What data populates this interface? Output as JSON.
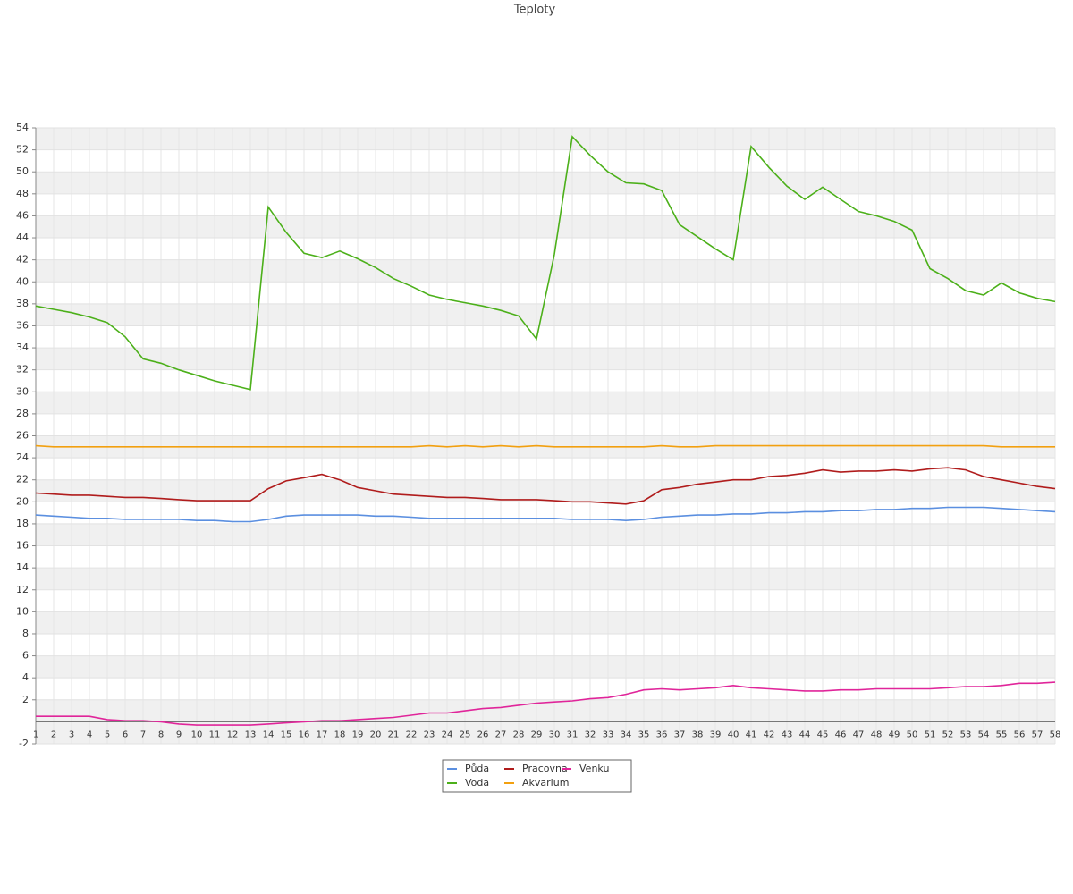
{
  "chart_data": {
    "type": "line",
    "title": "Teploty",
    "categories": [
      "1",
      "2",
      "3",
      "4",
      "5",
      "6",
      "7",
      "8",
      "9",
      "10",
      "11",
      "12",
      "13",
      "14",
      "15",
      "16",
      "17",
      "18",
      "19",
      "20",
      "21",
      "22",
      "23",
      "24",
      "25",
      "26",
      "27",
      "28",
      "29",
      "30",
      "31",
      "32",
      "33",
      "34",
      "35",
      "36",
      "37",
      "38",
      "39",
      "40",
      "41",
      "42",
      "43",
      "44",
      "45",
      "46",
      "47",
      "48",
      "49",
      "50",
      "51",
      "52",
      "53",
      "54",
      "55",
      "56",
      "57",
      "58"
    ],
    "series": [
      {
        "name": "Půda",
        "color": "#5b8fe0",
        "values": [
          18.8,
          18.7,
          18.6,
          18.5,
          18.5,
          18.4,
          18.4,
          18.4,
          18.4,
          18.3,
          18.3,
          18.2,
          18.2,
          18.4,
          18.7,
          18.8,
          18.8,
          18.8,
          18.8,
          18.7,
          18.7,
          18.6,
          18.5,
          18.5,
          18.5,
          18.5,
          18.5,
          18.5,
          18.5,
          18.5,
          18.4,
          18.4,
          18.4,
          18.3,
          18.4,
          18.6,
          18.7,
          18.8,
          18.8,
          18.9,
          18.9,
          19.0,
          19.0,
          19.1,
          19.1,
          19.2,
          19.2,
          19.3,
          19.3,
          19.4,
          19.4,
          19.5,
          19.5,
          19.5,
          19.4,
          19.3,
          19.2,
          19.1
        ]
      },
      {
        "name": "Pracovna",
        "color": "#b01c1c",
        "values": [
          20.8,
          20.7,
          20.6,
          20.6,
          20.5,
          20.4,
          20.4,
          20.3,
          20.2,
          20.1,
          20.1,
          20.1,
          20.1,
          21.2,
          21.9,
          22.2,
          22.5,
          22.0,
          21.3,
          21.0,
          20.7,
          20.6,
          20.5,
          20.4,
          20.4,
          20.3,
          20.2,
          20.2,
          20.2,
          20.1,
          20.0,
          20.0,
          19.9,
          19.8,
          20.1,
          21.1,
          21.3,
          21.6,
          21.8,
          22.0,
          22.0,
          22.3,
          22.4,
          22.6,
          22.9,
          22.7,
          22.8,
          22.8,
          22.9,
          22.8,
          23.0,
          23.1,
          22.9,
          22.3,
          22.0,
          21.7,
          21.4,
          21.2
        ]
      },
      {
        "name": "Venku",
        "color": "#e0259a",
        "values": [
          0.5,
          0.5,
          0.5,
          0.5,
          0.2,
          0.1,
          0.1,
          0.0,
          -0.2,
          -0.3,
          -0.3,
          -0.3,
          -0.3,
          -0.2,
          -0.1,
          0.0,
          0.1,
          0.1,
          0.2,
          0.3,
          0.4,
          0.6,
          0.8,
          0.8,
          1.0,
          1.2,
          1.3,
          1.5,
          1.7,
          1.8,
          1.9,
          2.1,
          2.2,
          2.5,
          2.9,
          3.0,
          2.9,
          3.0,
          3.1,
          3.3,
          3.1,
          3.0,
          2.9,
          2.8,
          2.8,
          2.9,
          2.9,
          3.0,
          3.0,
          3.0,
          3.0,
          3.1,
          3.2,
          3.2,
          3.3,
          3.5,
          3.5,
          3.6
        ]
      },
      {
        "name": "Voda",
        "color": "#4cb01a",
        "values": [
          37.8,
          37.5,
          37.2,
          36.8,
          36.3,
          35.0,
          33.0,
          32.6,
          32.0,
          31.5,
          31.0,
          30.6,
          30.2,
          46.8,
          44.5,
          42.6,
          42.2,
          42.8,
          42.1,
          41.3,
          40.3,
          39.6,
          38.8,
          38.4,
          38.1,
          37.8,
          37.4,
          36.9,
          34.8,
          42.5,
          53.2,
          51.5,
          50.0,
          49.0,
          48.9,
          48.3,
          45.2,
          44.1,
          43.0,
          42.0,
          52.3,
          50.4,
          48.7,
          47.5,
          48.6,
          47.5,
          46.4,
          46.0,
          45.5,
          44.7,
          41.2,
          40.3,
          39.2,
          38.8,
          39.9,
          39.0,
          38.5,
          38.2
        ]
      },
      {
        "name": "Akvarium",
        "color": "#f2a010",
        "values": [
          25.1,
          25.0,
          25.0,
          25.0,
          25.0,
          25.0,
          25.0,
          25.0,
          25.0,
          25.0,
          25.0,
          25.0,
          25.0,
          25.0,
          25.0,
          25.0,
          25.0,
          25.0,
          25.0,
          25.0,
          25.0,
          25.0,
          25.1,
          25.0,
          25.1,
          25.0,
          25.1,
          25.0,
          25.1,
          25.0,
          25.0,
          25.0,
          25.0,
          25.0,
          25.0,
          25.1,
          25.0,
          25.0,
          25.1,
          25.1,
          25.1,
          25.1,
          25.1,
          25.1,
          25.1,
          25.1,
          25.1,
          25.1,
          25.1,
          25.1,
          25.1,
          25.1,
          25.1,
          25.1,
          25.0,
          25.0,
          25.0,
          25.0
        ]
      }
    ],
    "ylim": [
      -2,
      54
    ],
    "yticks": [
      -2,
      2,
      4,
      6,
      8,
      10,
      12,
      14,
      16,
      18,
      20,
      22,
      24,
      26,
      28,
      30,
      32,
      34,
      36,
      38,
      40,
      42,
      44,
      46,
      48,
      50,
      52,
      54
    ],
    "grid": true
  }
}
